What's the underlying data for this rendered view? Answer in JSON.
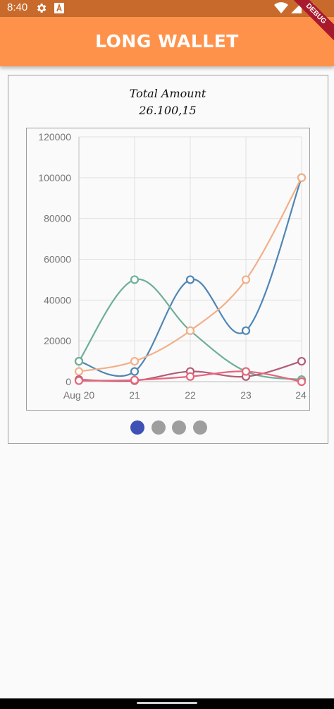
{
  "status_bar": {
    "time": "8:40",
    "icons": [
      "settings-icon",
      "a-badge-icon",
      "wifi-icon",
      "signal-icon",
      "battery-icon"
    ]
  },
  "app_bar": {
    "title": "LONG WALLET",
    "debug_label": "DEBUG",
    "background": "#ff924a"
  },
  "card": {
    "label": "Total Amount",
    "value": "26.100,15"
  },
  "pager": {
    "pages": 4,
    "active_index": 0,
    "active_color": "#3f51b5",
    "inactive_color": "#9e9e9e"
  },
  "chart_data": {
    "type": "line",
    "categories": [
      "Aug 20",
      "21",
      "22",
      "23",
      "24"
    ],
    "ylim": [
      0,
      120000
    ],
    "yticks": [
      "0",
      "20000",
      "40000",
      "60000",
      "80000",
      "100000",
      "120000"
    ],
    "grid": true,
    "curve": "smooth",
    "marker": "hollow-circle",
    "series": [
      {
        "color": "#4f86b4",
        "values": [
          10000,
          5000,
          50000,
          25000,
          100000
        ]
      },
      {
        "color": "#6eaf97",
        "values": [
          10000,
          50000,
          25000,
          5000,
          1000
        ]
      },
      {
        "color": "#f2b08a",
        "values": [
          5000,
          10000,
          25000,
          50000,
          100000
        ]
      },
      {
        "color": "#b35c77",
        "values": [
          1000,
          500,
          5000,
          2500,
          10000
        ]
      },
      {
        "color": "#e8657a",
        "values": [
          500,
          800,
          2500,
          5000,
          0
        ]
      }
    ]
  }
}
